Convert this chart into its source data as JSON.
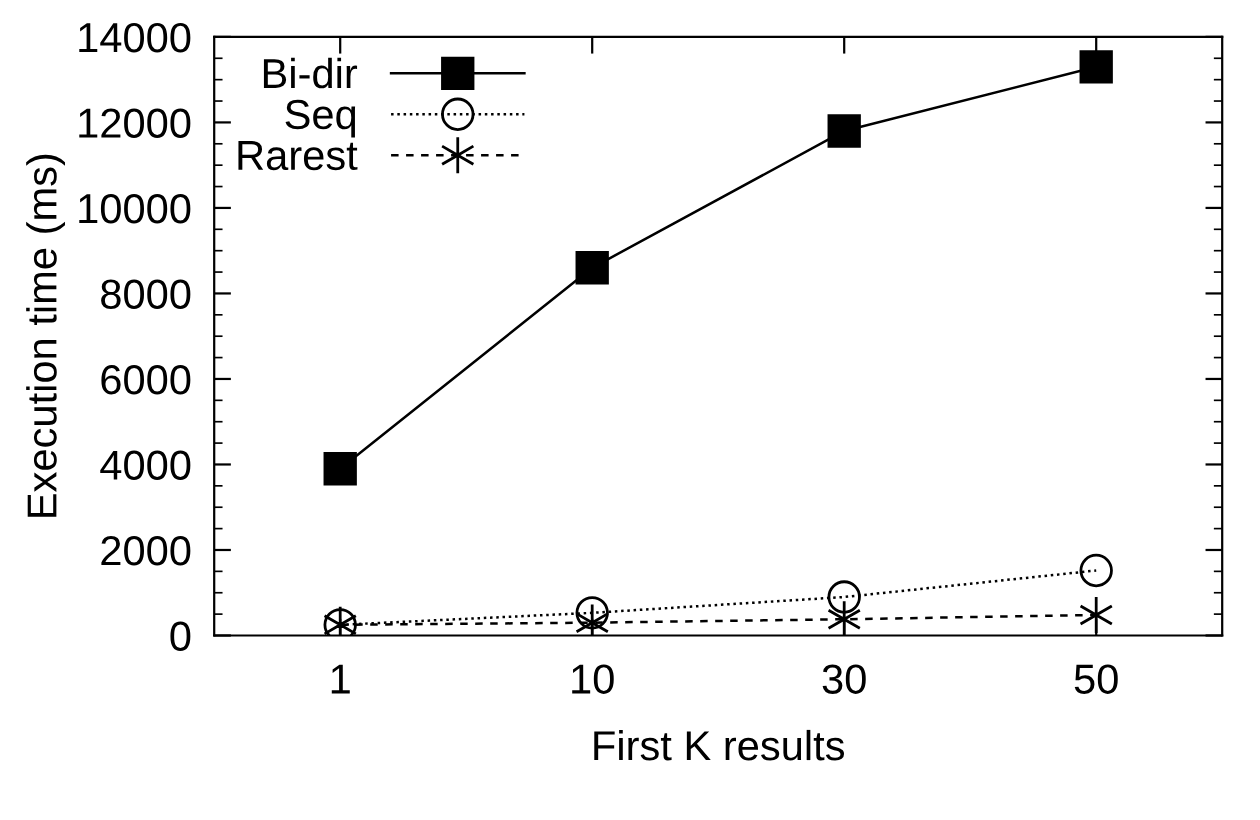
{
  "chart_data": {
    "type": "line",
    "xlabel": "First K results",
    "ylabel": "Execution time (ms)",
    "categories": [
      "1",
      "10",
      "30",
      "50"
    ],
    "ylim": [
      0,
      14000
    ],
    "yticks": [
      0,
      2000,
      4000,
      6000,
      8000,
      10000,
      12000,
      14000
    ],
    "grid": false,
    "legend": "top left",
    "series": [
      {
        "name": "Bi-dir",
        "color": "#000000",
        "marker": "square",
        "line_style": "solid",
        "values": [
          3900,
          8600,
          11800,
          13300
        ]
      },
      {
        "name": "Seq",
        "color": "#000000",
        "marker": "circle",
        "line_style": "dotted",
        "values": [
          250,
          530,
          900,
          1520
        ]
      },
      {
        "name": "Rarest",
        "color": "#000000",
        "marker": "cross",
        "line_style": "dashed",
        "values": [
          250,
          300,
          380,
          480
        ]
      }
    ]
  }
}
